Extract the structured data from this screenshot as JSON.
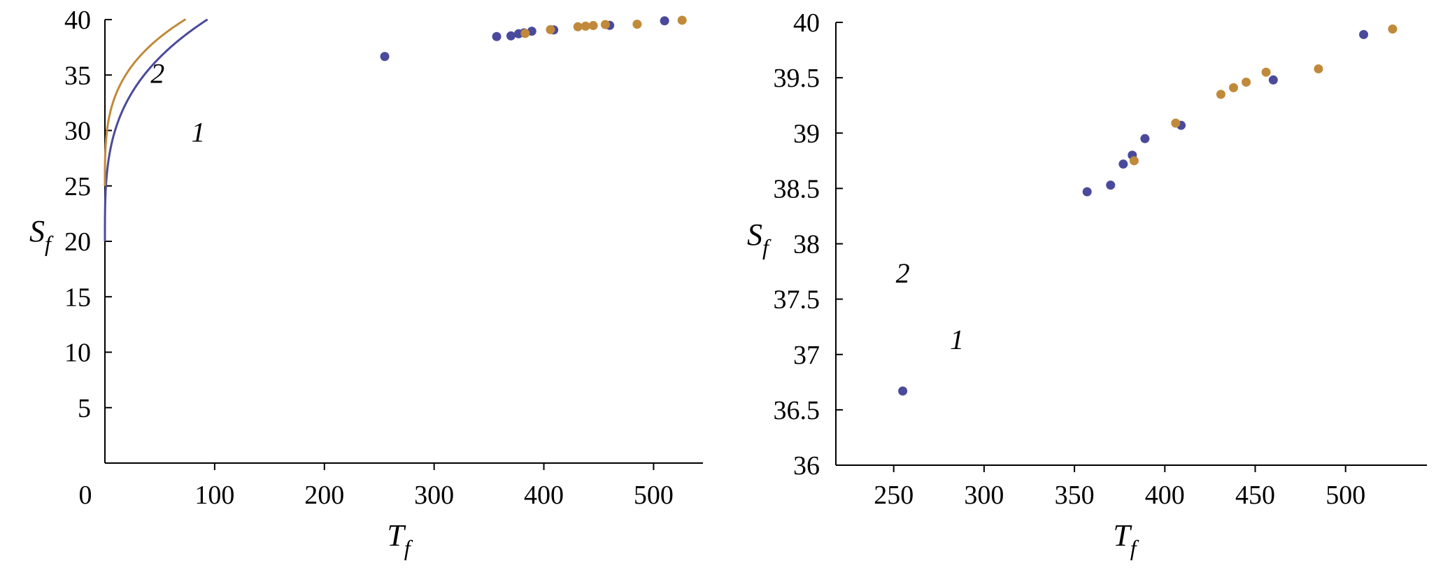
{
  "chart_data": [
    {
      "type": "scatter",
      "xlabel": "T",
      "xlabel_sub": "f",
      "ylabel": "S",
      "ylabel_sub": "f",
      "xlim": [
        0,
        545
      ],
      "ylim": [
        0,
        40
      ],
      "xticks": [
        0,
        100,
        200,
        300,
        400,
        500
      ],
      "xtick_labels": [
        "0",
        "100",
        "200",
        "300",
        "400",
        "500"
      ],
      "yticks": [
        5,
        10,
        15,
        20,
        25,
        30,
        35,
        40
      ],
      "ytick_labels": [
        "5",
        "10",
        "15",
        "20",
        "25",
        "30",
        "35",
        "40"
      ],
      "grid": false,
      "series": [
        {
          "name": "1",
          "color": "#4a4a9c",
          "line": {
            "a": 20.0,
            "b": 5.13,
            "k": 0.3,
            "xmin": 0,
            "xmax": 530
          },
          "points": {
            "x": [
              255,
              357,
              370,
              377,
              382,
              389,
              409,
              460,
              510
            ],
            "y": [
              36.67,
              38.47,
              38.53,
              38.72,
              38.8,
              38.95,
              39.07,
              39.48,
              39.89
            ]
          }
        },
        {
          "name": "2",
          "color": "#c08a3a",
          "line": {
            "a": 25.0,
            "b": 4.14,
            "k": 0.3,
            "xmin": 0,
            "xmax": 545
          },
          "points": {
            "x": [
              383,
              406,
              431,
              438,
              445,
              456,
              485,
              526
            ],
            "y": [
              38.75,
              39.09,
              39.35,
              39.41,
              39.46,
              39.55,
              39.58,
              39.94
            ]
          }
        }
      ],
      "curve_labels": [
        {
          "text": "2",
          "x": 48,
          "y": 34.3
        },
        {
          "text": "1",
          "x": 85,
          "y": 29.0
        }
      ]
    },
    {
      "type": "scatter",
      "xlabel": "T",
      "xlabel_sub": "f",
      "ylabel": "S",
      "ylabel_sub": "f",
      "xlim": [
        218,
        545
      ],
      "ylim": [
        36,
        40
      ],
      "xticks": [
        250,
        300,
        350,
        400,
        450,
        500
      ],
      "xtick_labels": [
        "250",
        "300",
        "350",
        "400",
        "450",
        "500"
      ],
      "yticks": [
        36,
        36.5,
        37,
        37.5,
        38,
        38.5,
        39,
        39.5,
        40
      ],
      "ytick_labels": [
        "36",
        "36.5",
        "37",
        "37.5",
        "38",
        "38.5",
        "39",
        "39.5",
        "40"
      ],
      "grid": false,
      "series": [
        {
          "name": "1",
          "color": "#4a4a9c",
          "line": {
            "a": 20.0,
            "b": 5.13,
            "k": 0.3,
            "xmin": 218,
            "xmax": 505
          },
          "points": {
            "x": [
              255,
              357,
              370,
              377,
              382,
              389,
              409,
              460,
              510
            ],
            "y": [
              36.67,
              38.47,
              38.53,
              38.72,
              38.8,
              38.95,
              39.07,
              39.48,
              39.89
            ]
          }
        },
        {
          "name": "2",
          "color": "#c08a3a",
          "line": {
            "a": 25.0,
            "b": 4.14,
            "k": 0.3,
            "xmin": 218,
            "xmax": 530
          },
          "points": {
            "x": [
              383,
              406,
              431,
              438,
              445,
              456,
              485,
              526
            ],
            "y": [
              38.75,
              39.09,
              39.35,
              39.41,
              39.46,
              39.55,
              39.58,
              39.94
            ]
          }
        }
      ],
      "curve_labels": [
        {
          "text": "2",
          "x": 255,
          "y": 37.65
        },
        {
          "text": "1",
          "x": 285,
          "y": 37.05
        }
      ]
    }
  ]
}
